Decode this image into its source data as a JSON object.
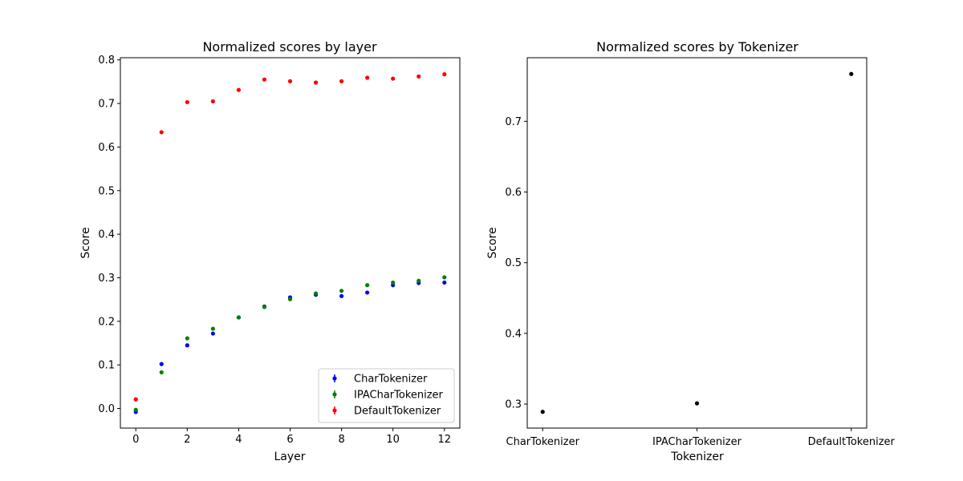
{
  "chart_data": [
    {
      "type": "scatter",
      "title": "Normalized scores by layer",
      "xlabel": "Layer",
      "ylabel": "Score",
      "xlim": [
        -0.6,
        12.6
      ],
      "ylim": [
        -0.045,
        0.805
      ],
      "xticks": [
        0,
        2,
        4,
        6,
        8,
        10,
        12
      ],
      "xtick_labels": [
        "0",
        "2",
        "4",
        "6",
        "8",
        "10",
        "12"
      ],
      "yticks": [
        0.0,
        0.1,
        0.2,
        0.3,
        0.4,
        0.5,
        0.6,
        0.7,
        0.8
      ],
      "ytick_labels": [
        "0.0",
        "0.1",
        "0.2",
        "0.3",
        "0.4",
        "0.5",
        "0.6",
        "0.7",
        "0.8"
      ],
      "x": [
        0,
        1,
        2,
        3,
        4,
        5,
        6,
        7,
        8,
        9,
        10,
        11,
        12
      ],
      "series": [
        {
          "name": "CharTokenizer",
          "color": "#0000ff",
          "values": [
            -0.008,
            0.102,
            0.145,
            0.172,
            0.209,
            0.234,
            0.255,
            0.261,
            0.258,
            0.266,
            0.283,
            0.288,
            0.289
          ]
        },
        {
          "name": "IPACharTokenizer",
          "color": "#008000",
          "values": [
            -0.003,
            0.083,
            0.161,
            0.183,
            0.209,
            0.233,
            0.251,
            0.264,
            0.27,
            0.283,
            0.289,
            0.293,
            0.301
          ]
        },
        {
          "name": "DefaultTokenizer",
          "color": "#ff0000",
          "values": [
            0.021,
            0.634,
            0.703,
            0.705,
            0.731,
            0.755,
            0.751,
            0.748,
            0.751,
            0.759,
            0.757,
            0.762,
            0.767
          ]
        }
      ],
      "legend": "lower-right",
      "grid": false
    },
    {
      "type": "scatter",
      "title": "Normalized scores by Tokenizer",
      "xlabel": "Tokenizer",
      "ylabel": "Score",
      "categories": [
        "CharTokenizer",
        "IPACharTokenizer",
        "DefaultTokenizer"
      ],
      "values": [
        0.289,
        0.301,
        0.767
      ],
      "color": "#000000",
      "ylim": [
        0.266,
        0.79
      ],
      "yticks": [
        0.3,
        0.4,
        0.5,
        0.6,
        0.7
      ],
      "ytick_labels": [
        "0.3",
        "0.4",
        "0.5",
        "0.6",
        "0.7"
      ],
      "grid": false
    }
  ]
}
